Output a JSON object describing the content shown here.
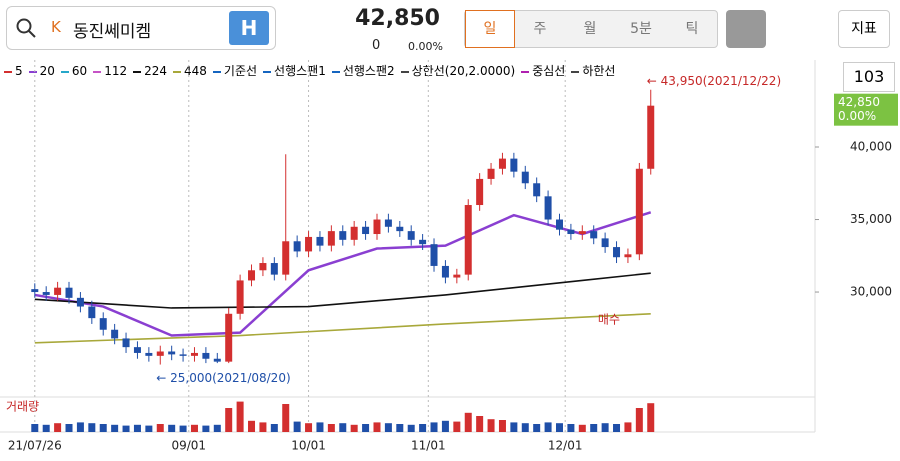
{
  "header": {
    "search_badge": "K",
    "name": "동진쎄미켐",
    "h_button": "H",
    "price": "42,850",
    "change": "0",
    "change_rate": "0.00%",
    "tabs": [
      "일",
      "주",
      "월",
      "5분",
      "틱"
    ],
    "indicator_button": "지표",
    "zoom": "103"
  },
  "chart_data": {
    "type": "candlestick",
    "legend": [
      {
        "name": "5",
        "color": "#d32f2f"
      },
      {
        "name": "20",
        "color": "#8a3fd1"
      },
      {
        "name": "60",
        "color": "#26a7c9"
      },
      {
        "name": "112",
        "color": "#c653c6"
      },
      {
        "name": "224",
        "color": "#111111"
      },
      {
        "name": "448",
        "color": "#a8a83a"
      },
      {
        "name": "기준선",
        "color": "#1565c0"
      },
      {
        "name": "선행스팬1",
        "color": "#1565c0"
      },
      {
        "name": "선행스팬2",
        "color": "#1565c0"
      },
      {
        "name": "상한선(20,2.0000)",
        "color": "#444444"
      },
      {
        "name": "중심선",
        "color": "#b020b0"
      },
      {
        "name": "하한선",
        "color": "#444444"
      }
    ],
    "x": [
      0,
      2,
      4,
      6,
      8,
      10,
      12,
      14,
      16,
      18,
      20,
      22,
      24,
      26,
      28,
      30,
      32,
      34,
      36,
      38,
      40,
      42,
      44,
      46,
      48,
      50,
      52,
      54,
      56,
      58,
      60,
      62,
      64,
      66,
      68,
      70,
      72,
      74,
      76,
      78,
      80,
      82,
      84,
      86,
      88,
      90,
      92,
      94,
      96,
      98,
      100,
      102,
      104,
      106,
      108
    ],
    "open": [
      30200,
      30000,
      29800,
      30300,
      29600,
      29000,
      28200,
      27400,
      26800,
      26200,
      25800,
      25600,
      25900,
      25700,
      25600,
      25800,
      25400,
      25200,
      28500,
      30800,
      31500,
      32000,
      31200,
      33500,
      32800,
      33800,
      33200,
      34200,
      33600,
      34500,
      34000,
      35000,
      34500,
      34200,
      33600,
      33300,
      31800,
      31000,
      31200,
      36000,
      37800,
      38500,
      39200,
      38300,
      37500,
      36600,
      35000,
      34300,
      34000,
      34200,
      33700,
      33100,
      32400,
      32600,
      38500
    ],
    "high": [
      30600,
      30400,
      30700,
      30700,
      30000,
      29400,
      28600,
      27800,
      27200,
      26600,
      26200,
      26300,
      26300,
      26100,
      26200,
      26200,
      25800,
      28900,
      31200,
      31900,
      32400,
      32400,
      39500,
      33900,
      34200,
      34200,
      34600,
      34600,
      34900,
      34900,
      35400,
      35400,
      34900,
      34600,
      34000,
      33700,
      32200,
      31600,
      36400,
      38200,
      38900,
      39600,
      39600,
      38700,
      37900,
      37000,
      35400,
      34700,
      34600,
      34600,
      34100,
      33500,
      33000,
      38900,
      43950
    ],
    "low": [
      29600,
      29400,
      29400,
      29200,
      28600,
      27800,
      27000,
      26400,
      25800,
      25400,
      25200,
      25000,
      25300,
      25200,
      25200,
      25100,
      25100,
      25100,
      28100,
      30400,
      31100,
      30800,
      30800,
      32400,
      32400,
      32800,
      32800,
      33200,
      33200,
      33600,
      33600,
      34100,
      33800,
      33200,
      32900,
      31400,
      30600,
      30600,
      30800,
      35600,
      37400,
      38100,
      37900,
      37100,
      36200,
      34600,
      33900,
      33600,
      33600,
      33300,
      32700,
      32000,
      32000,
      32200,
      38100
    ],
    "close": [
      30000,
      29800,
      30300,
      29600,
      29000,
      28200,
      27400,
      26800,
      26200,
      25800,
      25600,
      25900,
      25700,
      25600,
      25800,
      25400,
      25200,
      28500,
      30800,
      31500,
      32000,
      31200,
      33500,
      32800,
      33800,
      33200,
      34200,
      33600,
      34500,
      34000,
      35000,
      34500,
      34200,
      33600,
      33300,
      31800,
      31000,
      31200,
      36000,
      37800,
      38500,
      39200,
      38300,
      37500,
      36600,
      35000,
      34300,
      34000,
      34200,
      33700,
      33100,
      32400,
      32600,
      38500,
      42850
    ],
    "up_color": "#d32f2f",
    "down_color": "#1f4fa8",
    "lines": [
      {
        "name": "20",
        "color": "#8a3fd1",
        "x": [
          0,
          12,
          24,
          36,
          48,
          60,
          72,
          84,
          96,
          108
        ],
        "values": [
          29800,
          29000,
          27000,
          27200,
          31500,
          33000,
          33200,
          35300,
          34000,
          35500
        ]
      },
      {
        "name": "224",
        "color": "#111111",
        "x": [
          0,
          24,
          48,
          72,
          96,
          108
        ],
        "values": [
          29500,
          28900,
          29000,
          29800,
          30800,
          31300
        ]
      },
      {
        "name": "448",
        "color": "#a8a83a",
        "x": [
          0,
          36,
          72,
          108
        ],
        "values": [
          26500,
          27000,
          27800,
          28500
        ]
      }
    ],
    "volume_label": "거래량",
    "volume": [
      10,
      9,
      11,
      10,
      12,
      11,
      10,
      9,
      8,
      9,
      8,
      10,
      9,
      8,
      9,
      8,
      9,
      30,
      38,
      14,
      12,
      10,
      35,
      13,
      11,
      12,
      10,
      11,
      9,
      10,
      12,
      11,
      10,
      9,
      10,
      12,
      14,
      13,
      24,
      20,
      16,
      15,
      12,
      11,
      10,
      12,
      11,
      10,
      9,
      10,
      11,
      10,
      12,
      30,
      36
    ],
    "volume_ylim": [
      0,
      40
    ],
    "xlim": [
      -6.1,
      136.8
    ],
    "xticks": [
      {
        "value": 0,
        "label": "21/07/26"
      },
      {
        "value": 27,
        "label": "09/01"
      },
      {
        "value": 48,
        "label": "10/01"
      },
      {
        "value": 69,
        "label": "11/01"
      },
      {
        "value": 93,
        "label": "12/01"
      }
    ],
    "ylim": [
      22900,
      46000
    ],
    "yticks": [
      {
        "value": 30000,
        "label": "30,000"
      },
      {
        "value": 35000,
        "label": "35,000"
      },
      {
        "value": 40000,
        "label": "40,000"
      }
    ],
    "current_price": {
      "value": 42850,
      "label": "42,850"
    },
    "current_rate": "0.00%",
    "annotations": [
      {
        "x": 108,
        "y": 43950,
        "text": "← 43,950(2021/12/22)"
      },
      {
        "x": 22,
        "y": 25000,
        "text": "← 25,000(2021/08/20)"
      },
      {
        "x": 104,
        "y": 29600,
        "text": "매수"
      }
    ]
  }
}
